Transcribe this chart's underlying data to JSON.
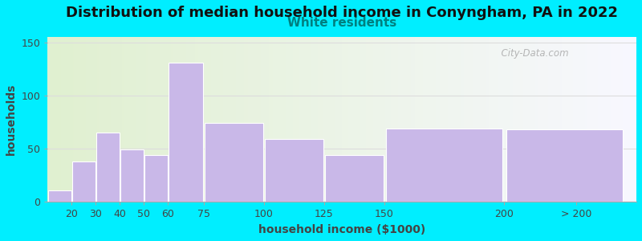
{
  "title": "Distribution of median household income in Conyngham, PA in 2022",
  "subtitle": "White residents",
  "xlabel": "household income ($1000)",
  "ylabel": "households",
  "background_outer": "#00eeff",
  "bar_color": "#c9b8e8",
  "bar_edgecolor": "#ffffff",
  "categories": [
    "20",
    "30",
    "40",
    "50",
    "60",
    "75",
    "100",
    "125",
    "150",
    "200",
    "> 200"
  ],
  "values": [
    11,
    38,
    65,
    49,
    44,
    131,
    74,
    59,
    44,
    69,
    68
  ],
  "ylim": [
    0,
    155
  ],
  "yticks": [
    0,
    50,
    100,
    150
  ],
  "title_fontsize": 13,
  "subtitle_fontsize": 11,
  "subtitle_color": "#008080",
  "axis_label_fontsize": 10,
  "tick_fontsize": 9,
  "watermark": "  City-Data.com",
  "widths": [
    10,
    10,
    10,
    10,
    10,
    15,
    25,
    25,
    25,
    50,
    50
  ],
  "left_edges": [
    10,
    20,
    30,
    40,
    50,
    60,
    75,
    100,
    125,
    150,
    200
  ],
  "xlim": [
    10,
    255
  ],
  "tick_positions": [
    20,
    30,
    40,
    50,
    60,
    75,
    100,
    125,
    150,
    200,
    230
  ]
}
